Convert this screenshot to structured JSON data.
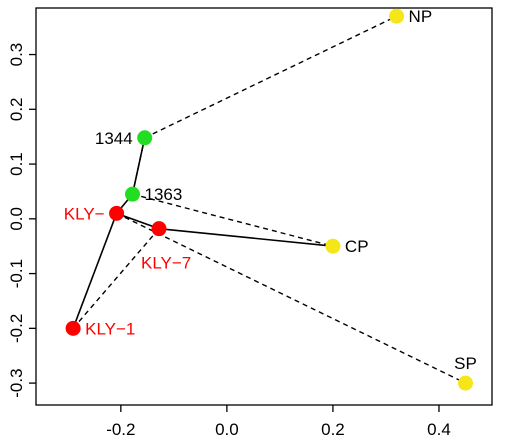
{
  "chart_data": {
    "type": "scatter",
    "title": "",
    "xlabel": "",
    "ylabel": "",
    "xlim": [
      -0.36,
      0.5
    ],
    "ylim": [
      -0.34,
      0.385
    ],
    "x_ticks": [
      -0.2,
      0.0,
      0.2,
      0.4
    ],
    "x_tick_labels": [
      "-0.2",
      "0.0",
      "0.2",
      "0.4"
    ],
    "y_ticks": [
      -0.3,
      -0.2,
      -0.1,
      0.0,
      0.1,
      0.2,
      0.3
    ],
    "y_tick_labels": [
      "-0.3",
      "-0.2",
      "-0.1",
      "0.0",
      "0.1",
      "0.2",
      "0.3"
    ],
    "grid": false,
    "legend": "none",
    "colors": {
      "red": "#ff0000",
      "green": "#22dd22",
      "yellow": "#f5e61a",
      "axis": "#000000"
    },
    "points": [
      {
        "id": "NP",
        "label": "NP",
        "x": 0.32,
        "y": 0.37,
        "color": "yellow",
        "label_color": "#000000",
        "label_side": "right"
      },
      {
        "id": "1344",
        "label": "1344",
        "x": -0.155,
        "y": 0.148,
        "color": "green",
        "label_color": "#000000",
        "label_side": "left"
      },
      {
        "id": "1363",
        "label": "1363",
        "x": -0.178,
        "y": 0.045,
        "color": "green",
        "label_color": "#000000",
        "label_side": "right"
      },
      {
        "id": "KLY-x",
        "label": "KLY−",
        "x": -0.208,
        "y": 0.01,
        "color": "red",
        "label_color": "#ff0000",
        "label_side": "left"
      },
      {
        "id": "KLY-7",
        "label": "KLY−7",
        "x": -0.128,
        "y": -0.018,
        "color": "red",
        "label_color": "#ff0000",
        "label_side": "below-right"
      },
      {
        "id": "CP",
        "label": "CP",
        "x": 0.2,
        "y": -0.05,
        "color": "yellow",
        "label_color": "#000000",
        "label_side": "right"
      },
      {
        "id": "KLY-1",
        "label": "KLY−1",
        "x": -0.29,
        "y": -0.2,
        "color": "red",
        "label_color": "#ff0000",
        "label_side": "right"
      },
      {
        "id": "SP",
        "label": "SP",
        "x": 0.45,
        "y": -0.3,
        "color": "yellow",
        "label_color": "#000000",
        "label_side": "above"
      }
    ],
    "solid_segments": [
      [
        "KLY-1",
        "KLY-x"
      ],
      [
        "KLY-x",
        "1363"
      ],
      [
        "1363",
        "1344"
      ],
      [
        "KLY-x",
        "KLY-7"
      ],
      [
        "KLY-7",
        "CP"
      ]
    ],
    "dashed_segments": [
      [
        "1344",
        "NP"
      ],
      [
        "1344",
        "1363"
      ],
      [
        "1363",
        "CP"
      ],
      [
        "KLY-x",
        "SP"
      ],
      [
        "KLY-1",
        "KLY-7"
      ]
    ]
  }
}
